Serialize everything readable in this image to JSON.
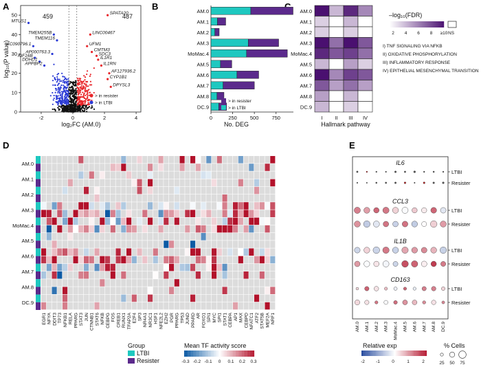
{
  "colors": {
    "ltbi": "#1ec8c0",
    "resister": "#5b2a8c",
    "up": "#e8262a",
    "down": "#2b3bd6",
    "nsgrey": "#dcdcdc",
    "heatNeg": "#0b5aa4",
    "heatPos": "#b2112a"
  },
  "panel_labels": [
    "A",
    "B",
    "C",
    "D",
    "E"
  ],
  "chart_data": [
    {
      "id": "A",
      "type": "scatter",
      "title": "",
      "xlabel": "log₂FC (AM.0)",
      "ylabel": "log₁₀(P value)",
      "xlim": [
        -3.3,
        4.3
      ],
      "ylim": [
        0,
        55
      ],
      "xticks": [
        -2,
        0,
        2,
        4
      ],
      "yticks": [
        0,
        10,
        20,
        30,
        40,
        50
      ],
      "count_down": "459",
      "count_up": "487",
      "legend": [
        {
          "label": "> in resister",
          "color": "#e8262a"
        },
        {
          "label": "> in LTBI",
          "color": "#2b3bd6"
        }
      ],
      "labeled_genes": [
        {
          "gene": "SPATA20",
          "x": 2.2,
          "y": 50
        },
        {
          "gene": "MTUS1",
          "x": -2.8,
          "y": 46
        },
        {
          "gene": "TMEM255B",
          "x": -1.2,
          "y": 40
        },
        {
          "gene": "TMEM116",
          "x": -1.0,
          "y": 37
        },
        {
          "gene": "LINC00467",
          "x": 1.1,
          "y": 40
        },
        {
          "gene": "AC090796.1",
          "x": -2.5,
          "y": 34
        },
        {
          "gene": "AP000763.3",
          "x": -1.3,
          "y": 30
        },
        {
          "gene": "KIF16B",
          "x": -2.4,
          "y": 28
        },
        {
          "gene": "DDHD1",
          "x": -2.1,
          "y": 26
        },
        {
          "gene": "APPBP2",
          "x": -1.8,
          "y": 24
        },
        {
          "gene": "UFM1",
          "x": 0.9,
          "y": 34
        },
        {
          "gene": "CMTM3",
          "x": 1.2,
          "y": 31
        },
        {
          "gene": "SDC3",
          "x": 1.5,
          "y": 29
        },
        {
          "gene": "IL1R1",
          "x": 1.6,
          "y": 27
        },
        {
          "gene": "IL1RN",
          "x": 1.8,
          "y": 24
        },
        {
          "gene": "AF127936.2",
          "x": 2.3,
          "y": 20
        },
        {
          "gene": "CYP1B1",
          "x": 2.2,
          "y": 17
        },
        {
          "gene": "DPYSL3",
          "x": 2.4,
          "y": 13
        }
      ]
    },
    {
      "id": "B",
      "type": "bar",
      "orientation": "horizontal",
      "stacked": true,
      "title": "",
      "xlabel": "No. DEG",
      "ylabel": "",
      "xlim": [
        0,
        950
      ],
      "xticks": [
        0,
        250,
        500,
        750
      ],
      "categories": [
        "AM.0",
        "AM.1",
        "AM.2",
        "AM.3",
        "MoMac.4",
        "AM.5",
        "AM.6",
        "AM.7",
        "AM.8",
        "DC.9"
      ],
      "series": [
        {
          "name": "> in LTBI",
          "values": [
            459,
            75,
            45,
            430,
            410,
            110,
            300,
            140,
            70,
            90
          ]
        },
        {
          "name": "> in resister",
          "values": [
            487,
            95,
            50,
            350,
            470,
            130,
            250,
            360,
            80,
            90
          ]
        }
      ]
    },
    {
      "id": "C",
      "type": "heatmap",
      "title": "",
      "xlabel": "Hallmark pathway",
      "colorbar_title": "–log₁₀(FDR)",
      "colorbar_ticks": [
        "2",
        "4",
        "6",
        "8",
        "≥10"
      ],
      "ns_label": "NS",
      "rows": [
        "AM.0",
        "AM.1",
        "AM.2",
        "AM.3",
        "MoMac.4",
        "AM.5",
        "AM.6",
        "AM.7",
        "AM.8",
        "DC.9"
      ],
      "columns": [
        "I",
        "II",
        "III",
        "IV"
      ],
      "pathways": [
        "I) TNF SIGNALING VIA NFKB",
        "II) OXIDATIVE PHOSPHORYLATION",
        "III) INFLAMMATORY RESPONSE",
        "IV) EPITHELIAL MESENCHYMAL TRANSITION"
      ],
      "values": [
        [
          10,
          3,
          9,
          5
        ],
        [
          2,
          null,
          3,
          null
        ],
        [
          2,
          null,
          2,
          null
        ],
        [
          10,
          6,
          10,
          7
        ],
        [
          9,
          7,
          8,
          6
        ],
        [
          3,
          null,
          4,
          2
        ],
        [
          10,
          5,
          8,
          7
        ],
        [
          7,
          4,
          6,
          4
        ],
        [
          4,
          null,
          3,
          null
        ],
        [
          3,
          null,
          2,
          null
        ]
      ]
    },
    {
      "id": "D",
      "type": "heatmap",
      "title": "",
      "colorbar_title": "Mean TF activity score",
      "colorbar_ticks": [
        "-0.3",
        "-0.2",
        "-0.1",
        "0",
        "0.1",
        "0.2",
        "0.3"
      ],
      "group_legend_title": "Group",
      "groups": [
        "LTBI",
        "Resister"
      ],
      "rows": [
        "AM.0",
        "AM.1",
        "AM.2",
        "AM.3",
        "MoMac.4",
        "AM.5",
        "AM.6",
        "AM.7",
        "AM.8",
        "DC.9"
      ],
      "tfs": [
        "EGR1",
        "NFYA",
        "DDIT3",
        "TP73",
        "NFKB1",
        "RELA",
        "PPARG",
        "STAT3",
        "JUN",
        "CTNNB1",
        "STAT6",
        "NFKB",
        "CEBPG",
        "FOS",
        "CREB1",
        "RUNX1",
        "TFAP2A",
        "E2F4",
        "SP3",
        "NR4A1",
        "NR3C1",
        "HSF1",
        "NFE2L2",
        "EZH2",
        "PGR",
        "PPARG",
        "TP53",
        "JUND",
        "PPARD",
        "AR",
        "FOXO1",
        "SPI1",
        "MYC",
        "SPI1",
        "STAT1",
        "CEBPA",
        "AP1",
        "MAX",
        "CEBPD",
        "NFATC1",
        "ATF2",
        "STAT5B",
        "MEF2A",
        "NRF1"
      ]
    },
    {
      "id": "E",
      "type": "dotplot",
      "genes": [
        "IL6",
        "CCL3",
        "IL1B",
        "CD163"
      ],
      "groups": [
        "LTBI",
        "Resister"
      ],
      "clusters": [
        "AM.0",
        "AM.1",
        "AM.2",
        "AM.3",
        "MoMac.4",
        "AM.5",
        "AM.6",
        "AM.7",
        "AM.8",
        "DC.9"
      ],
      "colorbar_title": "Relative exp",
      "colorbar_ticks": [
        "-2",
        "-1",
        "0",
        "1",
        "2"
      ],
      "size_title": "% Cells",
      "size_ticks": [
        "25",
        "50",
        "75"
      ]
    }
  ]
}
